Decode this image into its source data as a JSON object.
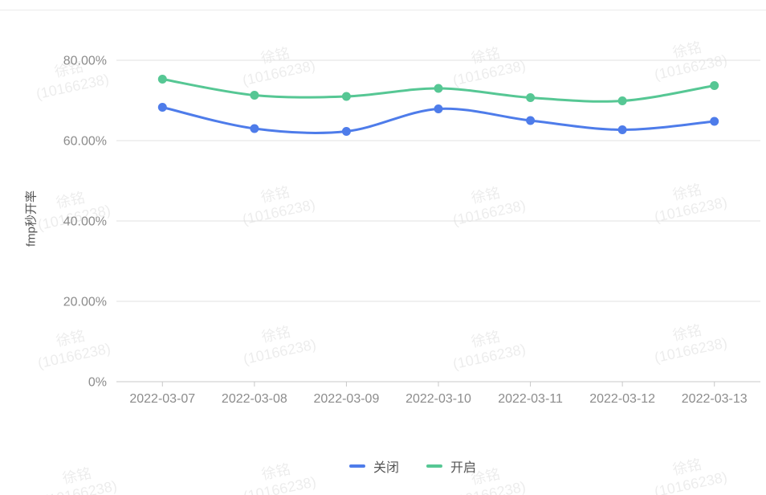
{
  "watermark": {
    "line1": "徐铭",
    "line2": "(10166238)"
  },
  "chart_data": {
    "type": "line",
    "title": "",
    "xlabel": "",
    "ylabel": "fmp秒开率",
    "smooth": true,
    "grid": true,
    "legend_position": "bottom",
    "categories": [
      "2022-03-07",
      "2022-03-08",
      "2022-03-09",
      "2022-03-10",
      "2022-03-11",
      "2022-03-12",
      "2022-03-13"
    ],
    "series": [
      {
        "name": "关闭",
        "color": "#4E7CEA",
        "values": [
          68.3,
          63.0,
          62.3,
          67.9,
          65.0,
          62.7,
          64.8
        ]
      },
      {
        "name": "开启",
        "color": "#56C794",
        "values": [
          75.3,
          71.3,
          71.0,
          73.0,
          70.7,
          69.9,
          73.7
        ]
      }
    ],
    "y_axis": {
      "tick_labels": [
        "0%",
        "20.00%",
        "40.00%",
        "60.00%",
        "80.00%"
      ],
      "tick_values": [
        0,
        20,
        40,
        60,
        80
      ],
      "min": 0,
      "max": 80,
      "unit": "%"
    },
    "colors": {
      "grid_line": "#e0e0e0",
      "axis_line": "#c8c8c8",
      "tick_text": "#8c8c8c",
      "axis_title_text": "#555555",
      "legend_text": "#555555"
    }
  }
}
